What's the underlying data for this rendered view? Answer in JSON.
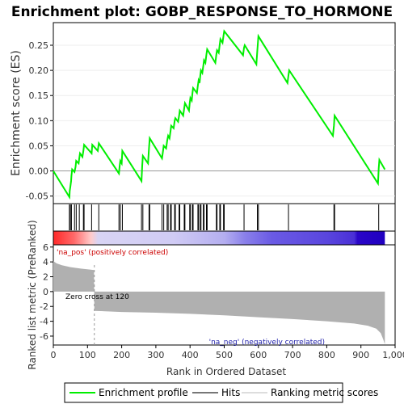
{
  "chart_data": {
    "type": "line",
    "title": "Enrichment plot: GOBP_RESPONSE_TO_HORMONE",
    "xlabel": "Rank in Ordered Dataset",
    "ylabel_top": "Enrichment score (ES)",
    "ylabel_bottom": "Ranked list metric (PreRanked)",
    "xlim": [
      0,
      1000
    ],
    "x_ticks": [
      0,
      100,
      200,
      300,
      400,
      500,
      600,
      700,
      800,
      900,
      1000
    ],
    "x_tick_labels": [
      "0",
      "100",
      "200",
      "300",
      "400",
      "500",
      "600",
      "700",
      "800",
      "900",
      "1,000"
    ],
    "es_ylim": [
      -0.065,
      0.295
    ],
    "es_ticks": [
      -0.05,
      0.0,
      0.05,
      0.1,
      0.15,
      0.2,
      0.25
    ],
    "es_tick_labels": [
      "-0.05",
      "0.00",
      "0.05",
      "0.10",
      "0.15",
      "0.20",
      "0.25"
    ],
    "metric_ylim": [
      -7.2,
      6.3
    ],
    "metric_ticks": [
      -6,
      -4,
      -2,
      0,
      2,
      4,
      6
    ],
    "metric_tick_labels": [
      "-6",
      "-4",
      "-2",
      "0",
      "2",
      "4",
      "6"
    ],
    "enrichment_profile": [
      [
        0,
        0.0
      ],
      [
        47,
        -0.052
      ],
      [
        48,
        -0.04
      ],
      [
        50,
        -0.03
      ],
      [
        52,
        -0.02
      ],
      [
        53,
        -0.01
      ],
      [
        55,
        0.003
      ],
      [
        62,
        -0.002
      ],
      [
        65,
        0.008
      ],
      [
        67,
        0.02
      ],
      [
        74,
        0.015
      ],
      [
        76,
        0.025
      ],
      [
        78,
        0.035
      ],
      [
        85,
        0.028
      ],
      [
        88,
        0.04
      ],
      [
        90,
        0.052
      ],
      [
        112,
        0.035
      ],
      [
        114,
        0.052
      ],
      [
        130,
        0.04
      ],
      [
        133,
        0.055
      ],
      [
        192,
        -0.005
      ],
      [
        194,
        0.01
      ],
      [
        196,
        0.02
      ],
      [
        200,
        0.015
      ],
      [
        202,
        0.04
      ],
      [
        258,
        -0.02
      ],
      [
        260,
        0.01
      ],
      [
        262,
        0.03
      ],
      [
        277,
        0.015
      ],
      [
        280,
        0.045
      ],
      [
        282,
        0.065
      ],
      [
        318,
        0.025
      ],
      [
        321,
        0.04
      ],
      [
        323,
        0.05
      ],
      [
        330,
        0.045
      ],
      [
        333,
        0.06
      ],
      [
        336,
        0.07
      ],
      [
        340,
        0.065
      ],
      [
        343,
        0.08
      ],
      [
        345,
        0.09
      ],
      [
        352,
        0.085
      ],
      [
        355,
        0.1
      ],
      [
        357,
        0.105
      ],
      [
        365,
        0.098
      ],
      [
        368,
        0.11
      ],
      [
        370,
        0.12
      ],
      [
        380,
        0.11
      ],
      [
        383,
        0.125
      ],
      [
        385,
        0.135
      ],
      [
        397,
        0.12
      ],
      [
        399,
        0.135
      ],
      [
        401,
        0.145
      ],
      [
        405,
        0.14
      ],
      [
        407,
        0.155
      ],
      [
        409,
        0.165
      ],
      [
        420,
        0.155
      ],
      [
        423,
        0.17
      ],
      [
        425,
        0.18
      ],
      [
        428,
        0.175
      ],
      [
        430,
        0.19
      ],
      [
        432,
        0.2
      ],
      [
        436,
        0.195
      ],
      [
        439,
        0.21
      ],
      [
        441,
        0.22
      ],
      [
        445,
        0.215
      ],
      [
        448,
        0.232
      ],
      [
        450,
        0.242
      ],
      [
        474,
        0.215
      ],
      [
        477,
        0.232
      ],
      [
        479,
        0.24
      ],
      [
        484,
        0.235
      ],
      [
        487,
        0.252
      ],
      [
        489,
        0.262
      ],
      [
        495,
        0.255
      ],
      [
        498,
        0.27
      ],
      [
        500,
        0.278
      ],
      [
        555,
        0.23
      ],
      [
        558,
        0.245
      ],
      [
        560,
        0.25
      ],
      [
        594,
        0.212
      ],
      [
        597,
        0.24
      ],
      [
        600,
        0.268
      ],
      [
        685,
        0.175
      ],
      [
        688,
        0.19
      ],
      [
        690,
        0.2
      ],
      [
        818,
        0.07
      ],
      [
        821,
        0.09
      ],
      [
        823,
        0.11
      ],
      [
        950,
        -0.025
      ],
      [
        952,
        0.005
      ],
      [
        954,
        0.022
      ],
      [
        970,
        0.003
      ]
    ],
    "hits": [
      47,
      50,
      53,
      62,
      67,
      76,
      88,
      90,
      112,
      133,
      192,
      196,
      202,
      258,
      262,
      280,
      282,
      318,
      323,
      333,
      336,
      343,
      345,
      355,
      357,
      368,
      370,
      383,
      385,
      399,
      401,
      407,
      409,
      423,
      425,
      430,
      432,
      439,
      441,
      448,
      450,
      477,
      479,
      487,
      489,
      498,
      500,
      558,
      597,
      600,
      688,
      821,
      823,
      952
    ],
    "metric_curve": [
      [
        0,
        4.1
      ],
      [
        10,
        3.8
      ],
      [
        25,
        3.55
      ],
      [
        50,
        3.3
      ],
      [
        80,
        3.1
      ],
      [
        110,
        2.95
      ],
      [
        119,
        2.9
      ],
      [
        120,
        -2.6
      ],
      [
        200,
        -2.75
      ],
      [
        300,
        -2.85
      ],
      [
        400,
        -3.0
      ],
      [
        500,
        -3.2
      ],
      [
        600,
        -3.45
      ],
      [
        700,
        -3.7
      ],
      [
        800,
        -4.0
      ],
      [
        880,
        -4.3
      ],
      [
        920,
        -4.6
      ],
      [
        945,
        -5.0
      ],
      [
        958,
        -5.6
      ],
      [
        965,
        -6.4
      ],
      [
        970,
        -7.1
      ]
    ],
    "heatmap_stops": [
      {
        "x": 0,
        "color": "#ff2a2a"
      },
      {
        "x": 60,
        "color": "#ff6a6a"
      },
      {
        "x": 110,
        "color": "#ffcccc"
      },
      {
        "x": 130,
        "color": "#d8d4f4"
      },
      {
        "x": 350,
        "color": "#d0cbf4"
      },
      {
        "x": 500,
        "color": "#b4aef0"
      },
      {
        "x": 560,
        "color": "#8a80ea"
      },
      {
        "x": 640,
        "color": "#6a5ae4"
      },
      {
        "x": 800,
        "color": "#5a46de"
      },
      {
        "x": 880,
        "color": "#4a30d6"
      },
      {
        "x": 890,
        "color": "#2a06c8"
      },
      {
        "x": 970,
        "color": "#2000c0"
      }
    ],
    "annotations": {
      "pos_label": "'na_pos' (positively correlated)",
      "neg_label": "'na_neg' (negatively correlated)",
      "zero_cross": "Zero cross at 120",
      "zero_cross_x": 120
    },
    "colors": {
      "profile": "#00ee00",
      "hits": "#000000",
      "metric_fill": "#b0b0b0",
      "pos_text": "#cc0000",
      "neg_text": "#2222aa"
    },
    "legend": [
      {
        "label": "Enrichment profile",
        "kind": "profile"
      },
      {
        "label": "Hits",
        "kind": "hits"
      },
      {
        "label": "Ranking metric scores",
        "kind": "metric"
      }
    ]
  }
}
